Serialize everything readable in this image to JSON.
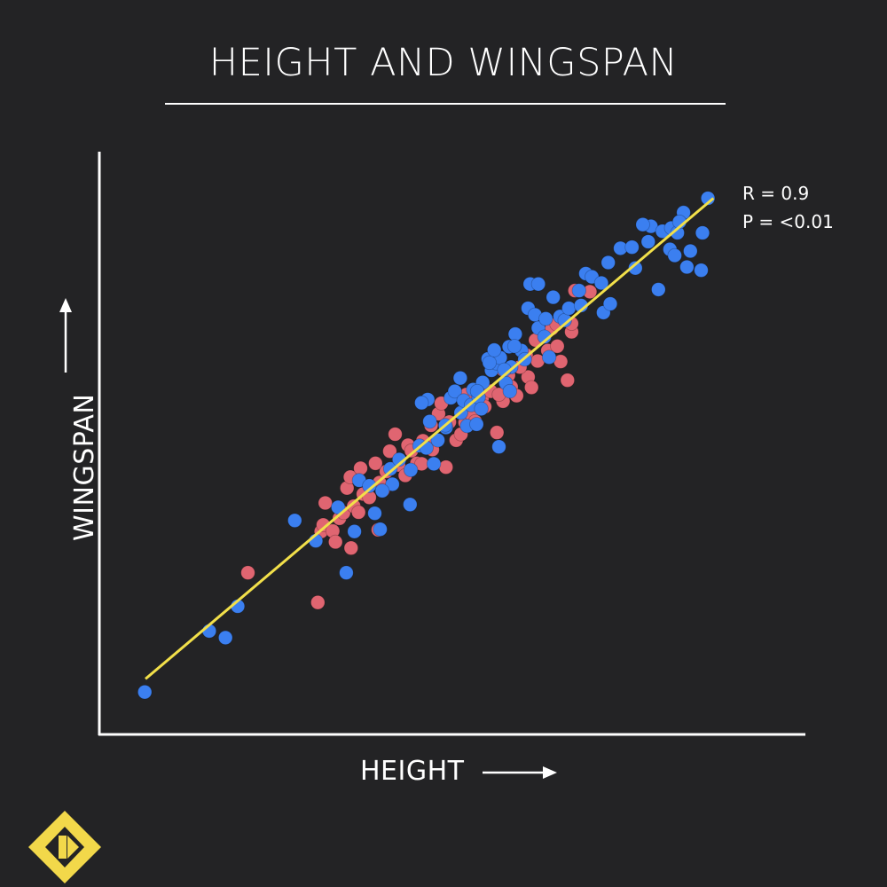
{
  "title": "HEIGHT AND WINGSPAN",
  "stats": {
    "r_label": "R = 0.9",
    "p_label": "P = <0.01"
  },
  "colors": {
    "background": "#232325",
    "axis": "#ffffff",
    "series_a": "#3b7ff0",
    "series_b": "#e06571",
    "trend_line": "#f2e04a",
    "logo": "#f2d84a"
  },
  "icons": {
    "logo": "yellow-diamond-logo-icon",
    "x_arrow": "right-arrow-icon",
    "y_arrow": "up-arrow-icon"
  },
  "chart_data": {
    "type": "scatter",
    "title": "HEIGHT AND WINGSPAN",
    "xlabel": "HEIGHT",
    "ylabel": "WINGSPAN",
    "xlim": [
      0,
      100
    ],
    "ylim": [
      0,
      100
    ],
    "grid": false,
    "ticks": false,
    "legend": "none",
    "annotations": [
      "R = 0.9",
      "P = <0.01"
    ],
    "trend_line": {
      "x": [
        4.7,
        88.4
      ],
      "y": [
        7.2,
        94.6
      ]
    },
    "series": [
      {
        "color": "#e06571",
        "points": [
          [
            19.8,
            26.5
          ],
          [
            30.1,
            21.1
          ],
          [
            30.6,
            34.0
          ],
          [
            30.9,
            35.2
          ],
          [
            31.2,
            39.2
          ],
          [
            32.3,
            34.1
          ],
          [
            32.7,
            32.1
          ],
          [
            33.3,
            36.4
          ],
          [
            33.9,
            37.4
          ],
          [
            34.4,
            41.9
          ],
          [
            34.9,
            43.9
          ],
          [
            35.4,
            38.6
          ],
          [
            36.1,
            37.5
          ],
          [
            36.8,
            40.8
          ],
          [
            36.4,
            45.5
          ],
          [
            37.7,
            40.2
          ],
          [
            38.6,
            46.4
          ],
          [
            39.2,
            42.9
          ],
          [
            39.7,
            41.5
          ],
          [
            40.2,
            44.9
          ],
          [
            40.7,
            48.6
          ],
          [
            41.5,
            51.7
          ],
          [
            42.0,
            46.1
          ],
          [
            43.0,
            44.2
          ],
          [
            43.4,
            49.7
          ],
          [
            43.9,
            48.7
          ],
          [
            44.7,
            46.4
          ],
          [
            45.4,
            46.3
          ],
          [
            45.6,
            50.5
          ],
          [
            46.6,
            49.3
          ],
          [
            46.8,
            53.3
          ],
          [
            47.5,
            50.4
          ],
          [
            47.9,
            55.4
          ],
          [
            48.3,
            57.3
          ],
          [
            49.0,
            45.7
          ],
          [
            49.5,
            53.9
          ],
          [
            50.5,
            50.6
          ],
          [
            51.2,
            51.7
          ],
          [
            51.8,
            53.8
          ],
          [
            52.4,
            56.9
          ],
          [
            52.7,
            55.4
          ],
          [
            53.3,
            54.0
          ],
          [
            54.3,
            58.2
          ],
          [
            54.7,
            56.7
          ],
          [
            55.6,
            59.5
          ],
          [
            56.5,
            52.0
          ],
          [
            57.4,
            57.7
          ],
          [
            57.4,
            63.4
          ],
          [
            58.2,
            62.4
          ],
          [
            58.6,
            60.3
          ],
          [
            59.4,
            58.7
          ],
          [
            60.8,
            66.1
          ],
          [
            61.1,
            62.1
          ],
          [
            61.6,
            60.2
          ],
          [
            62.5,
            65.0
          ],
          [
            63.3,
            69.5
          ],
          [
            64.0,
            66.9
          ],
          [
            64.6,
            70.9
          ],
          [
            65.4,
            67.7
          ],
          [
            65.9,
            64.9
          ],
          [
            66.9,
            61.5
          ],
          [
            67.5,
            70.3
          ],
          [
            68.0,
            77.8
          ],
          [
            70.2,
            77.6
          ],
          [
            67.5,
            71.8
          ],
          [
            65.3,
            71.7
          ],
          [
            52.0,
            58.9
          ],
          [
            56.8,
            58.9
          ],
          [
            59.9,
            63.9
          ],
          [
            62.2,
            68.8
          ],
          [
            47.0,
            48.9
          ],
          [
            39.0,
            34.3
          ],
          [
            35.0,
            31.0
          ]
        ]
      },
      {
        "color": "#3b7ff0",
        "points": [
          [
            4.6,
            4.8
          ],
          [
            14.1,
            15.9
          ],
          [
            16.5,
            14.7
          ],
          [
            18.3,
            20.4
          ],
          [
            26.7,
            36.0
          ],
          [
            29.8,
            32.3
          ],
          [
            33.1,
            38.4
          ],
          [
            34.3,
            26.5
          ],
          [
            35.5,
            34.0
          ],
          [
            36.2,
            43.3
          ],
          [
            37.7,
            42.3
          ],
          [
            38.5,
            37.3
          ],
          [
            39.3,
            34.4
          ],
          [
            40.8,
            45.4
          ],
          [
            41.1,
            42.6
          ],
          [
            42.1,
            47.1
          ],
          [
            43.8,
            45.2
          ],
          [
            45.1,
            49.6
          ],
          [
            46.1,
            49.2
          ],
          [
            46.6,
            54.0
          ],
          [
            47.8,
            50.6
          ],
          [
            49.0,
            52.9
          ],
          [
            49.7,
            58.3
          ],
          [
            50.3,
            59.5
          ],
          [
            51.2,
            55.6
          ],
          [
            51.6,
            57.8
          ],
          [
            52.1,
            53.2
          ],
          [
            52.7,
            57.0
          ],
          [
            53.0,
            59.8
          ],
          [
            53.8,
            58.4
          ],
          [
            54.2,
            56.3
          ],
          [
            54.4,
            61.1
          ],
          [
            55.2,
            65.4
          ],
          [
            55.7,
            63.3
          ],
          [
            56.4,
            64.6
          ],
          [
            57.0,
            65.6
          ],
          [
            57.8,
            61.0
          ],
          [
            58.3,
            67.6
          ],
          [
            58.6,
            63.9
          ],
          [
            59.2,
            69.9
          ],
          [
            60.1,
            66.9
          ],
          [
            61.4,
            79.0
          ],
          [
            61.1,
            74.6
          ],
          [
            62.1,
            73.4
          ],
          [
            62.6,
            71.0
          ],
          [
            63.5,
            69.4
          ],
          [
            63.7,
            72.7
          ],
          [
            64.8,
            76.6
          ],
          [
            65.8,
            73.1
          ],
          [
            66.5,
            72.4
          ],
          [
            67.1,
            74.6
          ],
          [
            68.6,
            77.8
          ],
          [
            68.9,
            75.1
          ],
          [
            69.6,
            80.9
          ],
          [
            70.5,
            80.3
          ],
          [
            71.9,
            79.2
          ],
          [
            72.2,
            73.8
          ],
          [
            73.2,
            75.4
          ],
          [
            74.7,
            85.5
          ],
          [
            76.4,
            85.7
          ],
          [
            78.8,
            86.7
          ],
          [
            79.2,
            89.5
          ],
          [
            80.3,
            78.0
          ],
          [
            80.9,
            88.6
          ],
          [
            82.0,
            85.3
          ],
          [
            82.2,
            89.2
          ],
          [
            82.7,
            84.2
          ],
          [
            83.1,
            88.3
          ],
          [
            84.0,
            92.0
          ],
          [
            84.5,
            82.1
          ],
          [
            85.0,
            85.0
          ],
          [
            86.6,
            81.5
          ],
          [
            86.8,
            88.3
          ],
          [
            87.6,
            94.6
          ],
          [
            83.4,
            90.3
          ],
          [
            78.0,
            89.8
          ],
          [
            76.9,
            81.9
          ],
          [
            57.6,
            63.4
          ],
          [
            51.1,
            61.9
          ],
          [
            46.3,
            58.0
          ],
          [
            53.5,
            53.5
          ],
          [
            47.2,
            46.3
          ],
          [
            43.7,
            38.9
          ],
          [
            39.6,
            41.4
          ],
          [
            64.2,
            65.7
          ],
          [
            60.6,
            65.3
          ],
          [
            56.8,
            49.4
          ],
          [
            58.4,
            59.5
          ],
          [
            45.4,
            57.4
          ],
          [
            53.6,
            59.5
          ],
          [
            72.9,
            82.9
          ],
          [
            62.6,
            79.0
          ],
          [
            55.4,
            64.7
          ],
          [
            59.1,
            67.7
          ],
          [
            56.1,
            67.0
          ],
          [
            48.9,
            53.3
          ]
        ]
      }
    ]
  }
}
